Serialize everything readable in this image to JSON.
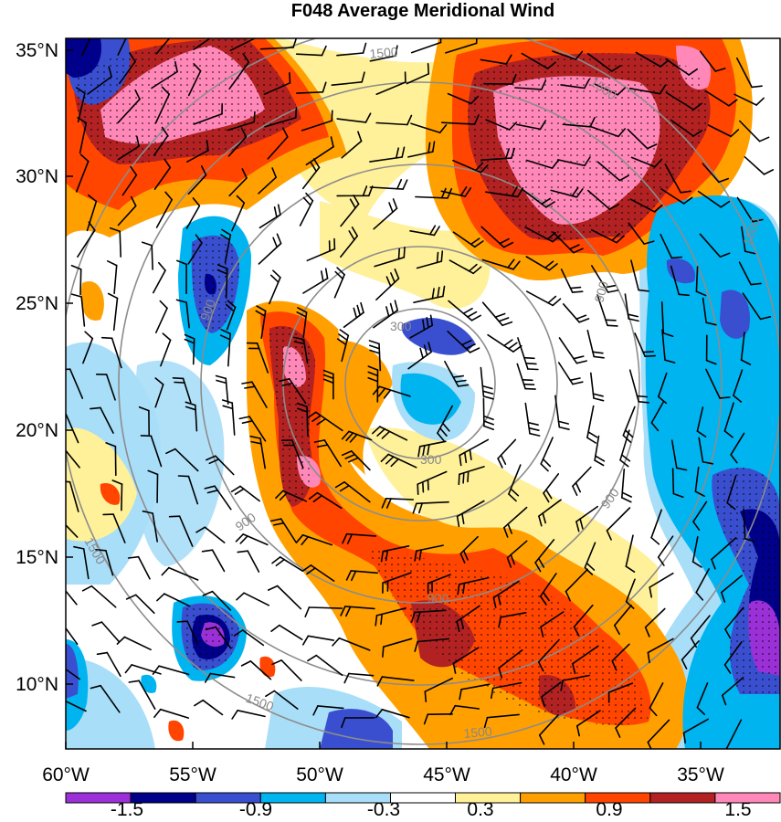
{
  "title": "F048 Average Meridional Wind",
  "lat_labels": [
    "35°N",
    "30°N",
    "25°N",
    "20°N",
    "15°N",
    "10°N"
  ],
  "lon_labels": [
    "60°W",
    "55°W",
    "50°W",
    "45°W",
    "40°W",
    "35°W"
  ],
  "colorbar": {
    "colors": [
      "#9b30d8",
      "#00008b",
      "#3a4fd0",
      "#00b4f0",
      "#a8def8",
      "#ffffff",
      "#fff09a",
      "#ffa000",
      "#ff4500",
      "#b22222",
      "#ff88b8"
    ],
    "labels": [
      "-1.5",
      "-0.9",
      "-0.3",
      "0.3",
      "0.9",
      "1.5"
    ]
  },
  "range_ring_labels": [
    "300",
    "300",
    "900",
    "900",
    "900",
    "900",
    "1500",
    "1500",
    "1500",
    "1500",
    "1500",
    "1500",
    "900"
  ]
}
